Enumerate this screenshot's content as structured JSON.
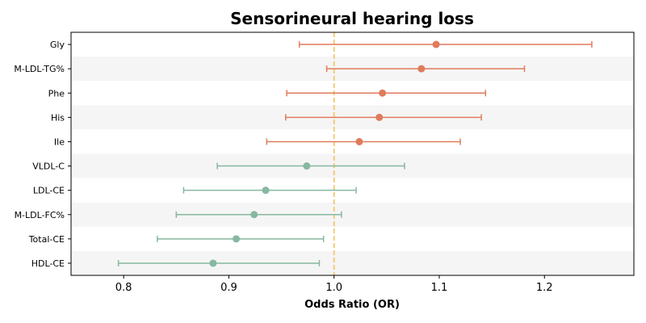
{
  "chart_data": {
    "type": "forest",
    "title": "Sensorineural hearing loss",
    "xlabel": "Odds Ratio (OR)",
    "ylabel": "",
    "xlim": [
      0.75,
      1.285
    ],
    "xticks": [
      0.8,
      0.9,
      1.0,
      1.1,
      1.2
    ],
    "xtick_labels": [
      "0.8",
      "0.9",
      "1.0",
      "1.1",
      "1.2"
    ],
    "reference_line": 1.0,
    "reference_color": "#f5c66b",
    "positive_color": "#e07b5c",
    "negative_color": "#86b8a0",
    "band_color": "#f5f5f5",
    "grid": false,
    "categories": [
      "Gly",
      "M-LDL-TG%",
      "Phe",
      "His",
      "Ile",
      "VLDL-C",
      "LDL-CE",
      "M-LDL-FC%",
      "Total-CE",
      "HDL-CE"
    ],
    "or": [
      1.097,
      1.083,
      1.046,
      1.043,
      1.024,
      0.974,
      0.935,
      0.924,
      0.907,
      0.885
    ],
    "lower": [
      0.967,
      0.993,
      0.955,
      0.954,
      0.936,
      0.889,
      0.857,
      0.85,
      0.832,
      0.795
    ],
    "upper": [
      1.245,
      1.181,
      1.144,
      1.14,
      1.12,
      1.067,
      1.021,
      1.007,
      0.99,
      0.986
    ]
  }
}
